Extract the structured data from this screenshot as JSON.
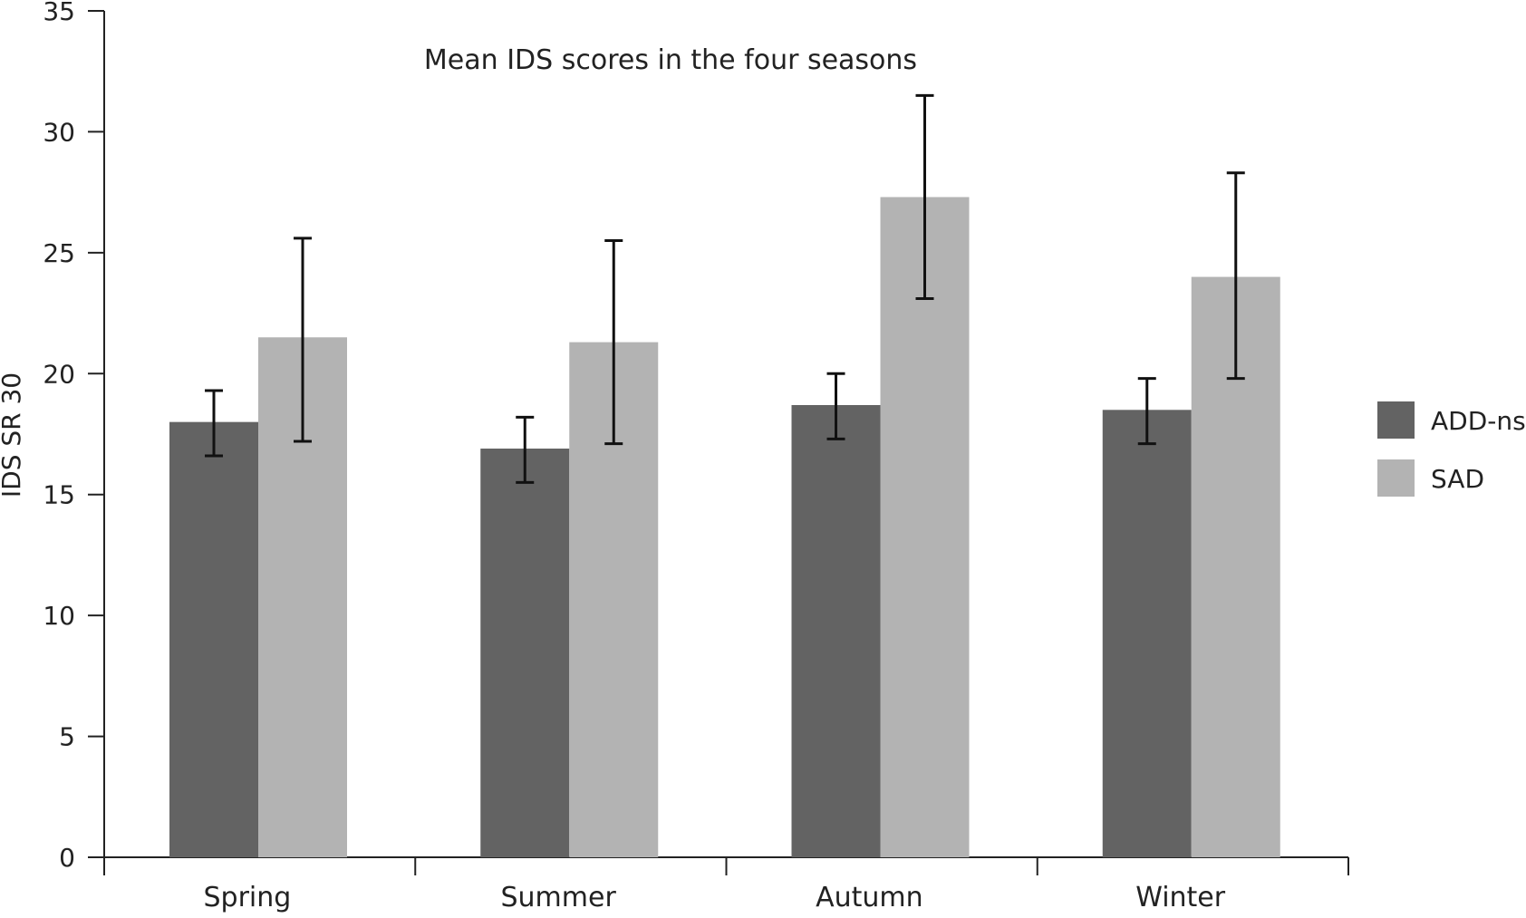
{
  "chart_data": {
    "type": "bar",
    "title": "Mean IDS scores in the four seasons",
    "xlabel": "",
    "ylabel": "IDS SR 30",
    "categories": [
      "Spring",
      "Summer",
      "Autumn",
      "Winter"
    ],
    "ylim": [
      0,
      35
    ],
    "yticks": [
      0,
      5,
      10,
      15,
      20,
      25,
      30,
      35
    ],
    "grid": false,
    "legend_position": "right",
    "series": [
      {
        "name": "ADD-ns",
        "color": "#636363",
        "values": [
          18.0,
          16.9,
          18.7,
          18.5
        ],
        "error_low": [
          16.6,
          15.5,
          17.3,
          17.1
        ],
        "error_high": [
          19.3,
          18.2,
          20.0,
          19.8
        ]
      },
      {
        "name": "SAD",
        "color": "#b3b3b3",
        "values": [
          21.5,
          21.3,
          27.3,
          24.0
        ],
        "error_low": [
          17.2,
          17.1,
          23.1,
          19.8
        ],
        "error_high": [
          25.6,
          25.5,
          31.5,
          28.3
        ]
      }
    ]
  }
}
